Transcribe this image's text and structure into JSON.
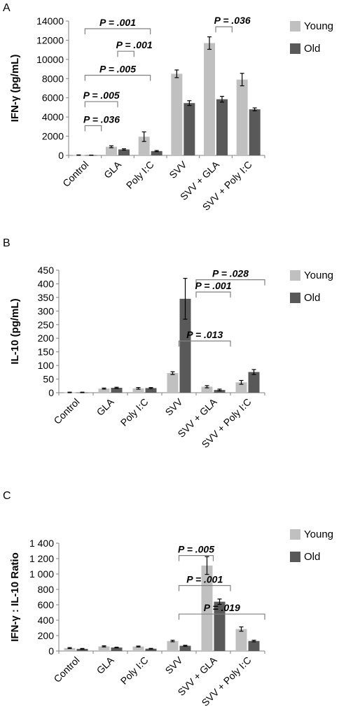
{
  "colors": {
    "young": "#c0c0c0",
    "old": "#595959"
  },
  "chart_data": [
    {
      "type": "bar",
      "panel": "A",
      "ylabel": "IFN-γ (pg/mL)",
      "ylim": [
        0,
        14000
      ],
      "yticks": [
        "0",
        "2000",
        "4000",
        "6000",
        "8000",
        "10000",
        "12000",
        "14000"
      ],
      "ytick_values": [
        0,
        2000,
        4000,
        6000,
        8000,
        10000,
        12000,
        14000
      ],
      "categories": [
        "Control",
        "GLA",
        "Poly I:C",
        "SVV",
        "SVV + GLA",
        "SVV + Poly I:C"
      ],
      "legend": {
        "position": "top-right"
      },
      "series": [
        {
          "name": "Young",
          "values": [
            30,
            900,
            1950,
            8500,
            11700,
            7900
          ],
          "errors": [
            20,
            100,
            500,
            400,
            650,
            650
          ]
        },
        {
          "name": "Old",
          "values": [
            20,
            620,
            450,
            5450,
            5850,
            4800
          ],
          "errors": [
            15,
            70,
            60,
            250,
            300,
            150
          ]
        }
      ],
      "annotations": [
        {
          "text": "P = .001",
          "from": 0,
          "to": 2,
          "y": 13200
        },
        {
          "text": "P = .001",
          "from": 1,
          "to": 1.5,
          "y": 10850
        },
        {
          "text": "P = .005",
          "from": 0,
          "to": 2,
          "y": 8350
        },
        {
          "text": "P = .005",
          "from": 0,
          "to": 1,
          "y": 5600
        },
        {
          "text": "P = .036",
          "from": 0,
          "to": 0.5,
          "y": 3100
        },
        {
          "text": "P = .036",
          "from": 4,
          "to": 4.5,
          "y": 13400
        }
      ]
    },
    {
      "type": "bar",
      "panel": "B",
      "ylabel": "IL-10 (pg/mL)",
      "ylim": [
        0,
        450
      ],
      "yticks": [
        "0",
        "50",
        "100",
        "150",
        "200",
        "250",
        "300",
        "350",
        "400",
        "450"
      ],
      "ytick_values": [
        0,
        50,
        100,
        150,
        200,
        250,
        300,
        350,
        400,
        450
      ],
      "categories": [
        "Control",
        "GLA",
        "Poly I:C",
        "SVV",
        "SVV + GLA",
        "SVV + Poly I:C"
      ],
      "legend": {
        "position": "top-right"
      },
      "series": [
        {
          "name": "Young",
          "values": [
            1,
            15,
            16,
            72,
            22,
            38
          ],
          "errors": [
            1,
            2,
            3,
            5,
            4,
            7
          ]
        },
        {
          "name": "Old",
          "values": [
            1,
            18,
            17,
            345,
            10,
            76
          ],
          "errors": [
            1,
            2,
            2,
            75,
            3,
            9
          ]
        }
      ],
      "annotations": [
        {
          "text": "P = .028",
          "from": 3.5,
          "to": 5.5,
          "y": 415
        },
        {
          "text": "P = .001",
          "from": 3.5,
          "to": 4.5,
          "y": 370
        },
        {
          "text": "P = .013",
          "from": 3,
          "to": 4.5,
          "y": 190
        }
      ]
    },
    {
      "type": "bar",
      "panel": "C",
      "ylabel": "IFN-γ : IL-10 Ratio",
      "ylim": [
        0,
        1400
      ],
      "yticks": [
        "0",
        "200",
        "400",
        "600",
        "800",
        "1 000",
        "1 200",
        "1 400"
      ],
      "ytick_values": [
        0,
        200,
        400,
        600,
        800,
        1000,
        1200,
        1400
      ],
      "categories": [
        "Control",
        "GLA",
        "Poly I:C",
        "SVV",
        "SVV + GLA",
        "SVV + Poly I:C"
      ],
      "legend": {
        "position": "top-right"
      },
      "series": [
        {
          "name": "Young",
          "values": [
            38,
            60,
            58,
            130,
            1110,
            285
          ],
          "errors": [
            6,
            7,
            6,
            10,
            115,
            28
          ]
        },
        {
          "name": "Old",
          "values": [
            28,
            45,
            30,
            68,
            640,
            130
          ],
          "errors": [
            5,
            5,
            4,
            6,
            35,
            10
          ]
        }
      ],
      "annotations": [
        {
          "text": "P = .005",
          "from": 3,
          "to": 4,
          "y": 1240
        },
        {
          "text": "P = .001",
          "from": 3,
          "to": 4.5,
          "y": 850
        },
        {
          "text": "P = .019",
          "from": 3,
          "to": 5.5,
          "y": 480
        }
      ]
    }
  ]
}
